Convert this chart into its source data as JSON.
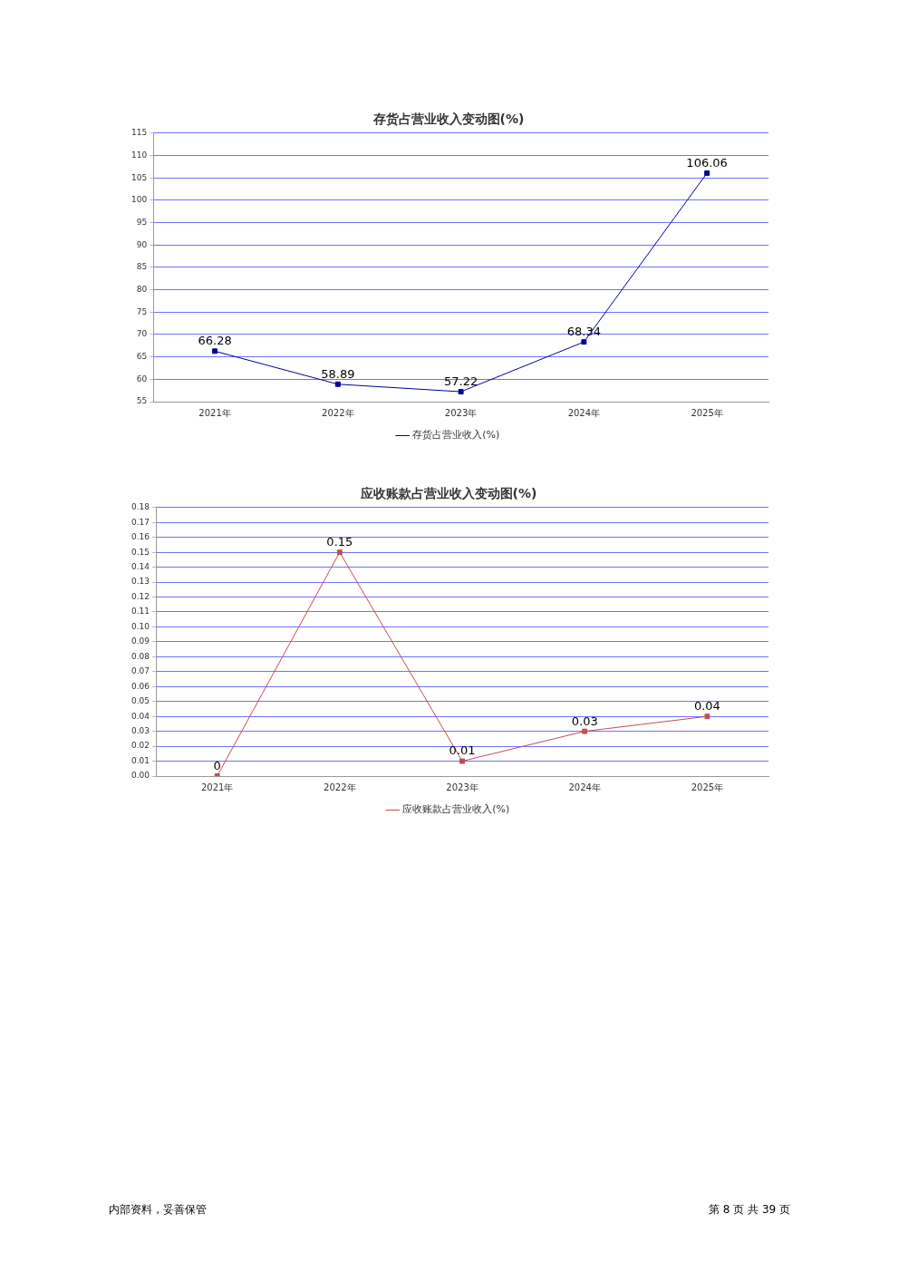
{
  "chart_data": [
    {
      "type": "line",
      "title": "存货占营业收入变动图(%)",
      "categories": [
        "2021年",
        "2022年",
        "2023年",
        "2024年",
        "2025年"
      ],
      "series": [
        {
          "name": "存货占营业收入(%)",
          "color": "#000099",
          "values": [
            66.28,
            58.89,
            57.22,
            68.34,
            106.06
          ]
        }
      ],
      "ylim": [
        55,
        115
      ],
      "yticks": [
        55,
        60,
        65,
        70,
        75,
        80,
        85,
        90,
        95,
        100,
        105,
        110,
        115
      ],
      "grid": "y",
      "legend": "bottom",
      "marker": "square",
      "data_labels": true
    },
    {
      "type": "line",
      "title": "应收账款占营业收入变动图(%)",
      "categories": [
        "2021年",
        "2022年",
        "2023年",
        "2024年",
        "2025年"
      ],
      "series": [
        {
          "name": "应收账款占营业收入(%)",
          "color": "#c0504d",
          "values": [
            0,
            0.15,
            0.01,
            0.03,
            0.04
          ]
        }
      ],
      "ylim": [
        0,
        0.18
      ],
      "yticks": [
        {
          "value": 0,
          "label": "0.00"
        },
        {
          "value": 0.01,
          "label": "0.01"
        },
        {
          "value": 0.02,
          "label": "0.02"
        },
        {
          "value": 0.03,
          "label": "0.03"
        },
        {
          "value": 0.04,
          "label": "0.04"
        },
        {
          "value": 0.05,
          "label": "0.05"
        },
        {
          "value": 0.06,
          "label": "0.06"
        },
        {
          "value": 0.07,
          "label": "0.07"
        },
        {
          "value": 0.08,
          "label": "0.08"
        },
        {
          "value": 0.09,
          "label": "0.09"
        },
        {
          "value": 0.1,
          "label": "0.10"
        },
        {
          "value": 0.11,
          "label": "0.11"
        },
        {
          "value": 0.12,
          "label": "0.12"
        },
        {
          "value": 0.13,
          "label": "0.13"
        },
        {
          "value": 0.14,
          "label": "0.14"
        },
        {
          "value": 0.15,
          "label": "0.15"
        },
        {
          "value": 0.16,
          "label": "0.16"
        },
        {
          "value": 0.17,
          "label": "0.17"
        },
        {
          "value": 0.18,
          "label": "0.18"
        }
      ],
      "grid": "y",
      "legend": "bottom",
      "marker": "square",
      "data_labels": true,
      "annotations": [
        "内部资料，妥善保管",
        "第 8 页 共 39 页"
      ]
    }
  ]
}
